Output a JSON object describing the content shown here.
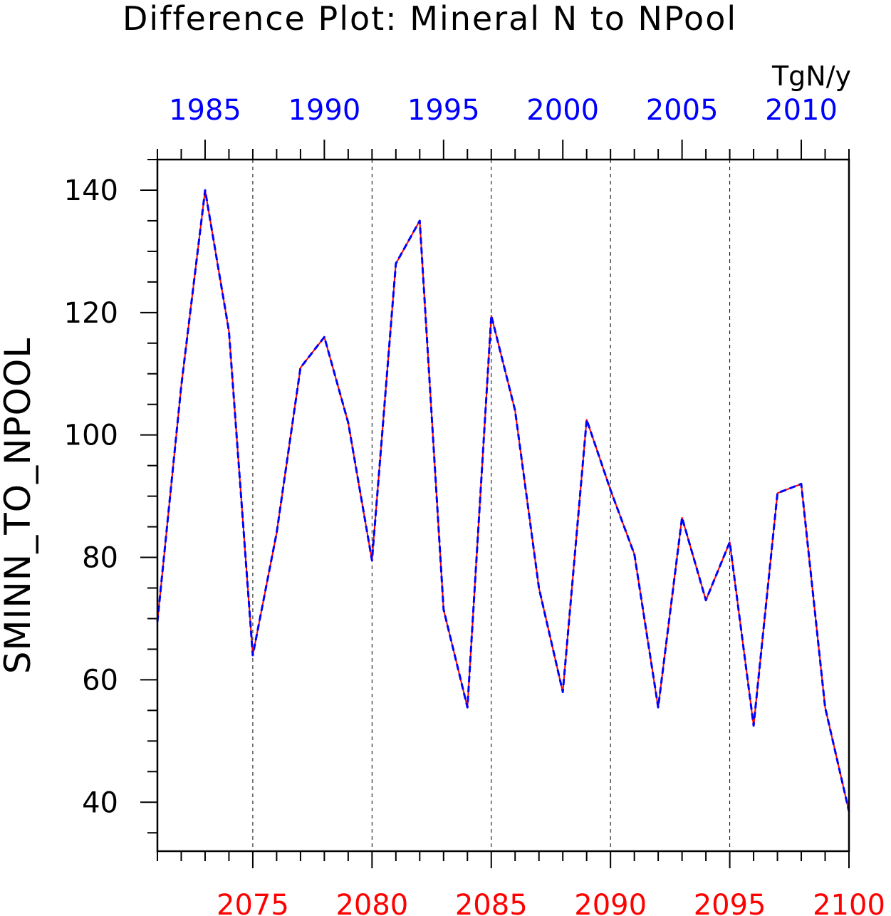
{
  "chart_data": {
    "type": "line",
    "title": "Difference Plot: Mineral N to NPool",
    "units": "TgN/y",
    "ylabel": "SMINN_TO_NPOOL",
    "ylim": [
      32,
      145
    ],
    "ytick_values": [
      40,
      60,
      80,
      100,
      120,
      140
    ],
    "ytick_labels": [
      "40",
      "60",
      "80",
      "100",
      "120",
      "140"
    ],
    "x_bottom": {
      "range": [
        2071,
        2100
      ],
      "tick_values": [
        2075,
        2080,
        2085,
        2090,
        2095,
        2100
      ],
      "tick_labels": [
        "2075",
        "2080",
        "2085",
        "2090",
        "2095",
        "2100"
      ],
      "color": "#ff0000"
    },
    "x_top": {
      "range": [
        1983,
        2012
      ],
      "tick_values": [
        1985,
        1990,
        1995,
        2000,
        2005,
        2010
      ],
      "tick_labels": [
        "1985",
        "1990",
        "1995",
        "2000",
        "2005",
        "2010"
      ],
      "color": "#0000ff"
    },
    "grid": "vertical dashed at major ticks",
    "x": [
      2071,
      2072,
      2073,
      2074,
      2075,
      2076,
      2077,
      2078,
      2079,
      2080,
      2081,
      2082,
      2083,
      2084,
      2085,
      2086,
      2087,
      2088,
      2089,
      2090,
      2091,
      2092,
      2093,
      2094,
      2095,
      2096,
      2097,
      2098,
      2099,
      2100
    ],
    "series": [
      {
        "axis": "bottom",
        "color": "#ff0000",
        "style": "solid",
        "values": [
          69.5,
          108,
          140,
          117,
          64,
          84,
          111,
          116,
          102,
          79.5,
          128,
          135,
          71.5,
          55.5,
          119.5,
          104,
          75,
          58,
          102.5,
          91,
          80.5,
          55.5,
          86.5,
          73,
          82.5,
          52.5,
          90.5,
          92,
          55.5,
          38.5
        ]
      },
      {
        "axis": "top",
        "color": "#0000ff",
        "style": "dashed",
        "values": [
          69.5,
          108,
          140,
          117,
          64,
          84,
          111,
          116,
          102,
          79.5,
          128,
          135,
          71.5,
          55.5,
          119.5,
          104,
          75,
          58,
          102.5,
          91,
          80.5,
          55.5,
          86.5,
          73,
          82.5,
          52.5,
          90.5,
          92,
          55.5,
          38.5
        ]
      }
    ]
  }
}
